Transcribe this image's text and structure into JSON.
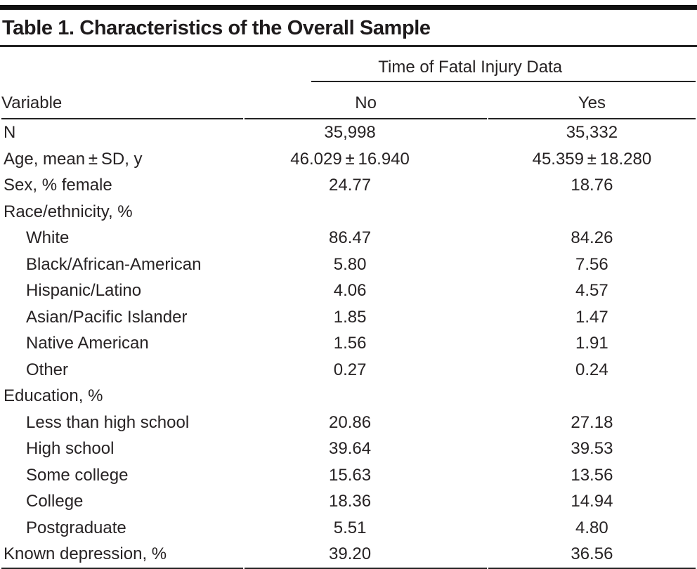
{
  "table": {
    "title": "Table 1. Characteristics of the Overall Sample",
    "spanner_header": "Time of Fatal Injury Data",
    "columns": {
      "variable": "Variable",
      "no": "No",
      "yes": "Yes"
    },
    "colors": {
      "text": "#272324",
      "rule": "#232323",
      "top_bar": "#111111"
    },
    "rows": [
      {
        "label": "N",
        "indent": false,
        "no": "35,998",
        "yes": "35,332"
      },
      {
        "label": "Age, mean ± SD, y",
        "indent": false,
        "no": "46.029 ± 16.940",
        "yes": "45.359 ± 18.280"
      },
      {
        "label": "Sex, % female",
        "indent": false,
        "no": "24.77",
        "yes": "18.76"
      },
      {
        "label": "Race/ethnicity, %",
        "indent": false,
        "no": "",
        "yes": ""
      },
      {
        "label": "White",
        "indent": true,
        "no": "86.47",
        "yes": "84.26"
      },
      {
        "label": "Black/African-American",
        "indent": true,
        "no": "5.80",
        "yes": "7.56"
      },
      {
        "label": "Hispanic/Latino",
        "indent": true,
        "no": "4.06",
        "yes": "4.57"
      },
      {
        "label": "Asian/Pacific Islander",
        "indent": true,
        "no": "1.85",
        "yes": "1.47"
      },
      {
        "label": "Native American",
        "indent": true,
        "no": "1.56",
        "yes": "1.91"
      },
      {
        "label": "Other",
        "indent": true,
        "no": "0.27",
        "yes": "0.24"
      },
      {
        "label": "Education, %",
        "indent": false,
        "no": "",
        "yes": ""
      },
      {
        "label": "Less than high school",
        "indent": true,
        "no": "20.86",
        "yes": "27.18"
      },
      {
        "label": "High school",
        "indent": true,
        "no": "39.64",
        "yes": "39.53"
      },
      {
        "label": "Some college",
        "indent": true,
        "no": "15.63",
        "yes": "13.56"
      },
      {
        "label": "College",
        "indent": true,
        "no": "18.36",
        "yes": "14.94"
      },
      {
        "label": "Postgraduate",
        "indent": true,
        "no": "5.51",
        "yes": "4.80"
      },
      {
        "label": "Known depression, %",
        "indent": false,
        "no": "39.20",
        "yes": "36.56"
      }
    ]
  }
}
